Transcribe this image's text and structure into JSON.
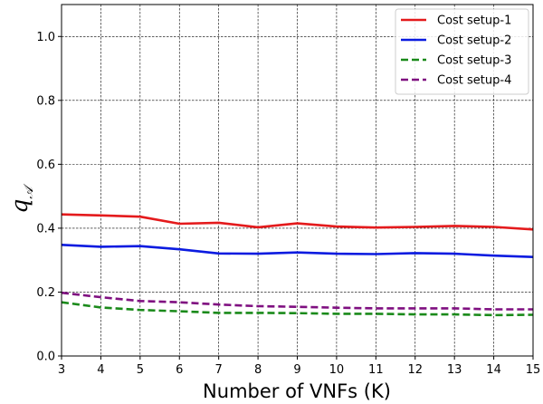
{
  "chart_data": {
    "type": "line",
    "title": "",
    "xlabel": "Number of VNFs (K)",
    "ylabel_base": "q",
    "ylabel_subscript": "𝒜",
    "x": [
      3,
      4,
      5,
      6,
      7,
      8,
      9,
      10,
      11,
      12,
      13,
      14,
      15
    ],
    "xlim": [
      3,
      15
    ],
    "ylim": [
      0,
      1.1
    ],
    "xticks": [
      3,
      4,
      5,
      6,
      7,
      8,
      9,
      10,
      11,
      12,
      13,
      14,
      15
    ],
    "yticks": [
      0.0,
      0.2,
      0.4,
      0.6,
      0.8,
      1.0
    ],
    "ytick_labels": [
      "0.0",
      "0.2",
      "0.4",
      "0.6",
      "0.8",
      "1.0"
    ],
    "grid": true,
    "legend_position": "top-right",
    "series": [
      {
        "name": "Cost setup-1",
        "color": "#e41a1c",
        "style": "solid",
        "values": [
          0.443,
          0.44,
          0.436,
          0.414,
          0.417,
          0.403,
          0.415,
          0.405,
          0.402,
          0.404,
          0.407,
          0.404,
          0.396
        ]
      },
      {
        "name": "Cost setup-2",
        "color": "#0b1be0",
        "style": "solid",
        "values": [
          0.348,
          0.342,
          0.344,
          0.334,
          0.321,
          0.32,
          0.324,
          0.32,
          0.319,
          0.322,
          0.32,
          0.314,
          0.31
        ]
      },
      {
        "name": "Cost setup-3",
        "color": "#1a8a1a",
        "style": "dashed",
        "values": [
          0.168,
          0.152,
          0.144,
          0.14,
          0.135,
          0.135,
          0.134,
          0.132,
          0.132,
          0.13,
          0.13,
          0.128,
          0.129
        ]
      },
      {
        "name": "Cost setup-4",
        "color": "#7f0f80",
        "style": "dashed",
        "values": [
          0.198,
          0.184,
          0.172,
          0.168,
          0.161,
          0.156,
          0.154,
          0.151,
          0.149,
          0.149,
          0.149,
          0.146,
          0.146
        ]
      }
    ]
  }
}
